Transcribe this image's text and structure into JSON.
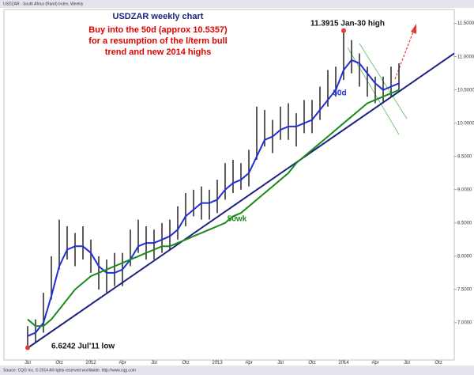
{
  "chart_data": {
    "type": "ohlc",
    "header": "USDZAR - South Africa (Rand) Index, Weekly",
    "title": "USDZAR weekly chart",
    "subtitle": [
      "Buy into the 50d (approx 10.5357)",
      "for a resumption of the l/term bull",
      "trend and new 2014 highs"
    ],
    "annotations": [
      "11.3915 Jan-30 high",
      "6.6242 Jul'11 low"
    ],
    "footer": "Source: CQG Inc. © 2014 All rights reserved worldwide. http://www.cqg.com",
    "categories": [
      "Jul",
      null,
      null,
      null,
      "Oct",
      null,
      null,
      null,
      "2012",
      null,
      null,
      null,
      "Apr",
      null,
      null,
      null,
      "Jul",
      null,
      null,
      null,
      "Oct",
      null,
      null,
      null,
      "2013",
      null,
      null,
      null,
      "Apr",
      null,
      null,
      null,
      "Jul",
      null,
      null,
      null,
      "Oct",
      null,
      null,
      null,
      "2014",
      null,
      null,
      null,
      "Apr",
      null,
      null,
      null,
      "Jul",
      null,
      null,
      null,
      "Oct",
      null,
      null
    ],
    "high": [
      6.95,
      7.05,
      7.45,
      8.0,
      8.55,
      8.45,
      8.35,
      8.45,
      8.25,
      8.0,
      7.95,
      8.05,
      8.05,
      8.4,
      8.55,
      8.45,
      8.4,
      8.5,
      8.55,
      8.75,
      8.95,
      9.0,
      9.05,
      9.0,
      9.15,
      9.4,
      9.45,
      9.4,
      9.6,
      10.25,
      10.2,
      10.05,
      10.25,
      10.3,
      10.15,
      10.35,
      10.35,
      10.55,
      10.8,
      10.85,
      11.3915,
      11.25,
      11.05,
      10.85,
      10.7,
      10.7,
      10.85,
      10.9,
      null,
      null,
      null,
      null,
      null,
      null,
      null
    ],
    "low": [
      6.6242,
      6.7,
      6.85,
      7.35,
      7.8,
      7.95,
      7.85,
      7.95,
      7.75,
      7.5,
      7.45,
      7.55,
      7.55,
      7.85,
      8.05,
      7.95,
      7.95,
      8.05,
      8.1,
      8.25,
      8.45,
      8.6,
      8.55,
      8.55,
      8.65,
      8.85,
      8.95,
      9.0,
      9.05,
      9.45,
      9.65,
      9.55,
      9.75,
      9.75,
      9.65,
      9.85,
      9.85,
      10.05,
      10.25,
      10.4,
      10.65,
      10.75,
      10.55,
      10.4,
      10.3,
      10.3,
      10.4,
      10.5,
      null,
      null,
      null,
      null,
      null,
      null,
      null
    ],
    "bar_color": "#333333",
    "lines": [
      {
        "name": "50d",
        "color": "#1f2fd6",
        "values": [
          6.8,
          6.85,
          7.0,
          7.4,
          7.85,
          8.1,
          8.15,
          8.15,
          8.05,
          7.85,
          7.75,
          7.75,
          7.8,
          7.95,
          8.15,
          8.2,
          8.2,
          8.25,
          8.3,
          8.4,
          8.6,
          8.7,
          8.8,
          8.8,
          8.85,
          9.0,
          9.1,
          9.15,
          9.25,
          9.5,
          9.75,
          9.8,
          9.9,
          9.95,
          9.95,
          10.0,
          10.05,
          10.2,
          10.35,
          10.5,
          10.8,
          10.95,
          10.9,
          10.75,
          10.6,
          10.5,
          10.55,
          10.6,
          null,
          null,
          null,
          null,
          null,
          null,
          null
        ]
      },
      {
        "name": "50wk",
        "color": "#1a8a1a",
        "values": [
          7.05,
          6.95,
          6.95,
          7.05,
          7.2,
          7.35,
          7.5,
          7.6,
          7.7,
          7.75,
          7.8,
          7.85,
          7.9,
          7.95,
          8.0,
          8.05,
          8.1,
          8.15,
          8.15,
          8.2,
          8.25,
          8.3,
          8.35,
          8.4,
          8.45,
          8.5,
          8.6,
          8.65,
          8.75,
          8.85,
          8.95,
          9.05,
          9.15,
          9.25,
          9.4,
          9.5,
          9.6,
          9.7,
          9.8,
          9.9,
          10.0,
          10.1,
          10.2,
          10.3,
          10.35,
          10.4,
          10.45,
          10.5,
          null,
          null,
          null,
          null,
          null,
          null,
          null
        ]
      }
    ],
    "trendline": [
      6.62,
      11.05
    ],
    "trend_color": "#1a237e",
    "ylim": [
      6.44,
      11.71
    ],
    "yticks": [
      {
        "value": 7,
        "label": "7.0000"
      },
      {
        "value": 7.5,
        "label": "7.5000"
      },
      {
        "value": 8,
        "label": "8.0000"
      },
      {
        "value": 8.5,
        "label": "8.5000"
      },
      {
        "value": 9,
        "label": "9.0000"
      },
      {
        "value": 9.5,
        "label": "9.5000"
      },
      {
        "value": 10,
        "label": "10.0000"
      },
      {
        "value": 10.5,
        "label": "10.5000"
      },
      {
        "value": 11,
        "label": "11.0000"
      },
      {
        "value": 11.5,
        "label": "11.5000"
      }
    ],
    "grid": false
  }
}
